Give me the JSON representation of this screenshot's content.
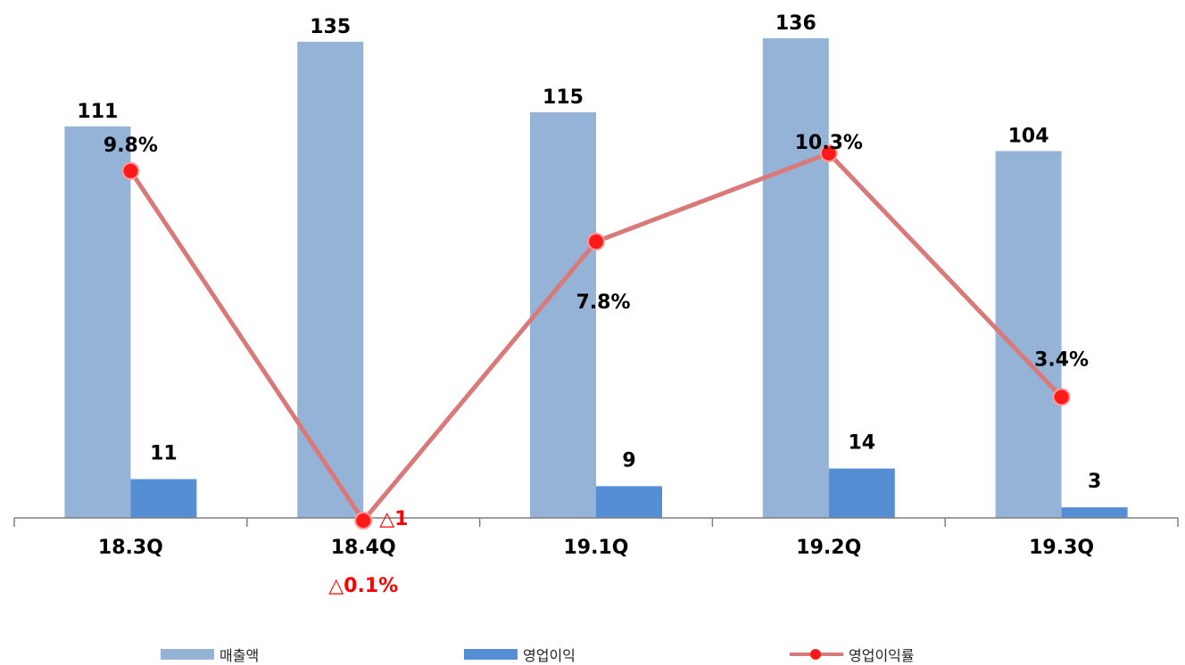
{
  "chart_data": {
    "type": "bar",
    "categories": [
      "18.3Q",
      "18.4Q",
      "19.1Q",
      "19.2Q",
      "19.3Q"
    ],
    "series": [
      {
        "name": "매출액",
        "kind": "bar",
        "values": [
          111,
          135,
          115,
          136,
          104
        ],
        "labels": [
          "111",
          "135",
          "115",
          "136",
          "104"
        ],
        "color": "#95b3d7"
      },
      {
        "name": "영업이익",
        "kind": "bar",
        "values": [
          11,
          -1,
          9,
          14,
          3
        ],
        "labels": [
          "11",
          "△1",
          "9",
          "14",
          "3"
        ],
        "color": "#558ed5"
      },
      {
        "name": "영업이익률",
        "kind": "line",
        "unit": "%",
        "values": [
          9.8,
          -0.1,
          7.8,
          10.3,
          3.4
        ],
        "labels": [
          "9.8%",
          "△0.1%",
          "7.8%",
          "10.3%",
          "3.4%"
        ],
        "color": "#d9797a",
        "marker_color": "#ff1a1a"
      }
    ],
    "negative_label_color": "#ff0000",
    "legend_position": "bottom",
    "grid": false
  }
}
